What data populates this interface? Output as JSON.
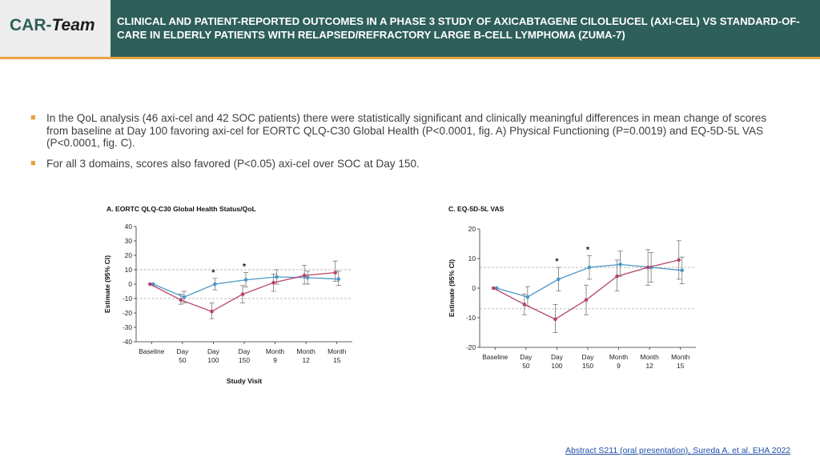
{
  "header": {
    "logo_brand": "CAR-",
    "logo_team": "Team",
    "title": "CLINICAL AND PATIENT-REPORTED OUTCOMES IN A PHASE 3 STUDY OF AXICABTAGENE CILOLEUCEL (AXI-CEL) VS STANDARD-OF-CARE IN ELDERLY PATIENTS WITH RELAPSED/REFRACTORY LARGE B-CELL LYMPHOMA (ZUMA-7)"
  },
  "bullets": [
    "In the QoL analysis (46 axi-cel and 42 SOC patients) there were statistically significant and clinically meaningful differences in mean change of scores from baseline at Day 100 favoring axi-cel for EORTC QLQ-C30 Global Health (P<0.0001, fig. A) Physical Functioning (P=0.0019) and EQ-5D-5L VAS (P<0.0001, fig. C).",
    "For all 3 domains, scores also favored (P<0.05) axi-cel over SOC at Day 150."
  ],
  "colors": {
    "header_bg": "#2e5f5a",
    "accent": "#e8a33d",
    "axi_cel": "#4a97c7",
    "soc": "#b6446a"
  },
  "chart_data": [
    {
      "type": "line",
      "title": "A. EORTC QLQ-C30 Global Health Status/QoL",
      "xlabel": "Study Visit",
      "ylabel": "Estimate (95% CI)",
      "categories": [
        [
          "Baseline"
        ],
        [
          "Day",
          "50"
        ],
        [
          "Day",
          "100"
        ],
        [
          "Day",
          "150"
        ],
        [
          "Month",
          "9"
        ],
        [
          "Month",
          "12"
        ],
        [
          "Month",
          "15"
        ]
      ],
      "ylim": [
        -40,
        40
      ],
      "yticks": [
        40,
        30,
        20,
        10,
        0,
        -10,
        -20,
        -30,
        -40
      ],
      "ytick_labels": [
        "40",
        "30",
        "20",
        "10",
        "0",
        "-10",
        "-20",
        "-30",
        "-40"
      ],
      "ref_lines": [
        10,
        -10
      ],
      "significant": [
        2,
        3
      ],
      "significance_marker": "*",
      "series": [
        {
          "values": [
            0,
            -9,
            0,
            3,
            5,
            4.5,
            3.5
          ],
          "lower": [
            0,
            -13,
            -4,
            -2,
            0,
            0,
            -1
          ],
          "upper": [
            0,
            -5,
            4,
            8,
            10,
            9,
            9
          ],
          "color": "#4a97c7"
        },
        {
          "values": [
            0,
            -11,
            -19,
            -7,
            1,
            6,
            8
          ],
          "lower": [
            0,
            -14,
            -24,
            -13,
            -5,
            0,
            2
          ],
          "upper": [
            0,
            -7,
            -13,
            -1,
            7,
            13,
            16
          ],
          "color": "#b6446a"
        }
      ]
    },
    {
      "type": "line",
      "title": "C. EQ-5D-5L VAS",
      "xlabel": "",
      "ylabel": "Estimate (95% CI)",
      "categories": [
        [
          "Baseline"
        ],
        [
          "Day",
          "50"
        ],
        [
          "Day",
          "100"
        ],
        [
          "Day",
          "150"
        ],
        [
          "Month",
          "9"
        ],
        [
          "Month",
          "12"
        ],
        [
          "Month",
          "15"
        ]
      ],
      "ylim": [
        -20,
        20
      ],
      "yticks": [
        20,
        10,
        0,
        -10,
        -20
      ],
      "ytick_labels": [
        "20",
        "10",
        "0",
        "-10",
        "-20"
      ],
      "ref_lines": [
        7,
        -7
      ],
      "significant": [
        2,
        3
      ],
      "significance_marker": "*",
      "series": [
        {
          "values": [
            0,
            -3,
            3,
            7,
            8,
            7,
            6
          ],
          "lower": [
            0,
            -6,
            -1,
            3,
            4,
            2,
            1.5
          ],
          "upper": [
            0,
            0.5,
            7,
            11,
            12.5,
            12,
            10.5
          ],
          "color": "#4a97c7"
        },
        {
          "values": [
            0,
            -5.5,
            -10.5,
            -4,
            4,
            7,
            9.5
          ],
          "lower": [
            0,
            -9,
            -15,
            -9,
            -1,
            1,
            3
          ],
          "upper": [
            0,
            -2,
            -5.5,
            1,
            9.5,
            13,
            16
          ],
          "color": "#b6446a"
        }
      ]
    }
  ],
  "footer": {
    "link": "Abstract S211 (oral presentation), Sureda A. et al. EHA 2022"
  }
}
